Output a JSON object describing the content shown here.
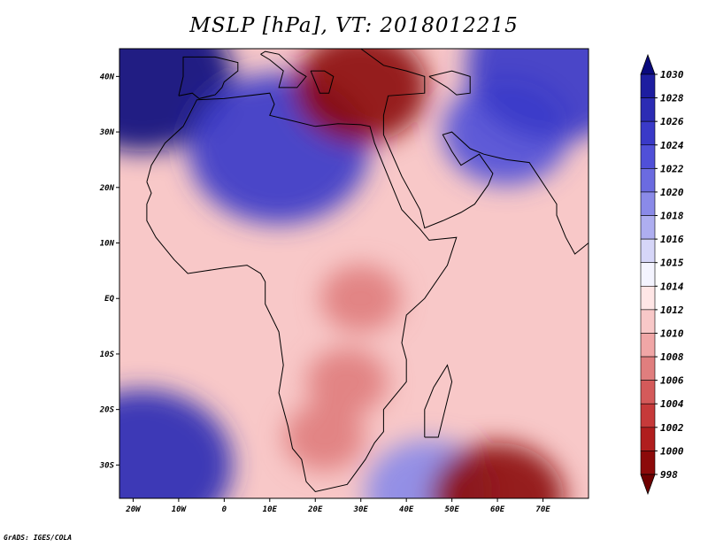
{
  "title": "MSLP [hPa], VT: 2018012215",
  "credit": "GrADS: IGES/COLA",
  "map": {
    "variable": "Mean sea level pressure",
    "units": "hPa",
    "valid_time": "2018012215",
    "lon_range": [
      -23,
      80
    ],
    "lat_range": [
      -36,
      45
    ],
    "lon_ticks": [
      {
        "value": -20,
        "label": "20W"
      },
      {
        "value": -10,
        "label": "10W"
      },
      {
        "value": 0,
        "label": "0"
      },
      {
        "value": 10,
        "label": "10E"
      },
      {
        "value": 20,
        "label": "20E"
      },
      {
        "value": 30,
        "label": "30E"
      },
      {
        "value": 40,
        "label": "40E"
      },
      {
        "value": 50,
        "label": "50E"
      },
      {
        "value": 60,
        "label": "60E"
      },
      {
        "value": 70,
        "label": "70E"
      }
    ],
    "lat_ticks": [
      {
        "value": 40,
        "label": "40N"
      },
      {
        "value": 30,
        "label": "30N"
      },
      {
        "value": 20,
        "label": "20N"
      },
      {
        "value": 10,
        "label": "10N"
      },
      {
        "value": 0,
        "label": "EQ"
      },
      {
        "value": -10,
        "label": "10S"
      },
      {
        "value": -20,
        "label": "20S"
      },
      {
        "value": -30,
        "label": "30S"
      }
    ],
    "field_features": [
      {
        "kind": "high",
        "lon": -18,
        "lat": 40,
        "value": 1030
      },
      {
        "kind": "high",
        "lon": 12,
        "lat": 27,
        "value": 1024
      },
      {
        "kind": "high",
        "lon": 62,
        "lat": 30,
        "value": 1022
      },
      {
        "kind": "high",
        "lon": -18,
        "lat": -30,
        "value": 1026
      },
      {
        "kind": "high",
        "lon": 73,
        "lat": 42,
        "value": 1024
      },
      {
        "kind": "high",
        "lon": 45,
        "lat": -35,
        "value": 1019
      },
      {
        "kind": "low",
        "lon": 30,
        "lat": 38,
        "value": 999
      },
      {
        "kind": "low",
        "lon": 60,
        "lat": -36,
        "value": 998
      },
      {
        "kind": "low",
        "lon": 27,
        "lat": -15,
        "value": 1006
      },
      {
        "kind": "low",
        "lon": 30,
        "lat": 0,
        "value": 1007
      },
      {
        "kind": "low",
        "lon": 22,
        "lat": -25,
        "value": 1007
      }
    ]
  },
  "colorbar": {
    "levels": [
      "1030",
      "1028",
      "1026",
      "1024",
      "1022",
      "1020",
      "1018",
      "1016",
      "1015",
      "1014",
      "1012",
      "1010",
      "1008",
      "1006",
      "1004",
      "1002",
      "1000",
      "998"
    ],
    "colors": [
      "#0a0a7d",
      "#1e1ea0",
      "#2c2cb4",
      "#3a3ac8",
      "#5050d8",
      "#6b6be0",
      "#8a8ae8",
      "#aeaef0",
      "#d6d6f8",
      "#f4f4ff",
      "#ffe6e6",
      "#f8c8c8",
      "#f0a6a6",
      "#e07e7e",
      "#d45a5a",
      "#c63a3a",
      "#b01e1e",
      "#8c0a0a",
      "#6e0000"
    ]
  }
}
